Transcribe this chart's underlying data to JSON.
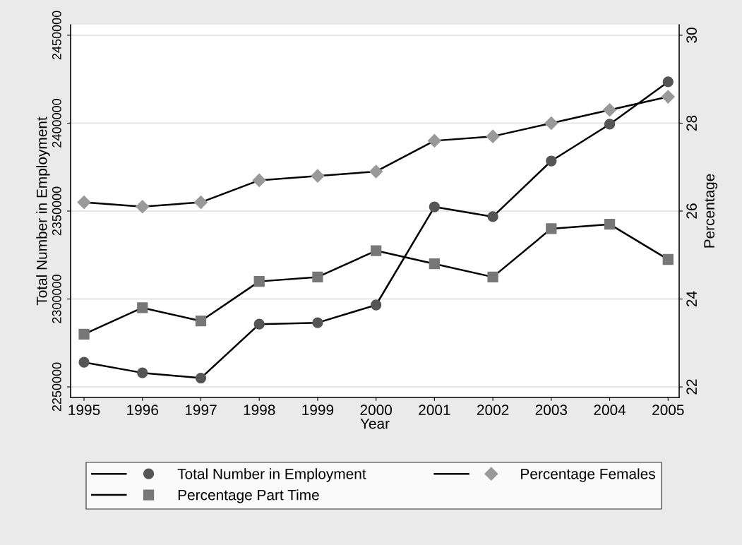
{
  "chart_data": {
    "type": "line",
    "xlabel": "Year",
    "ylabel": "Total Number in Employment",
    "y2label": "Percentage",
    "x": [
      1995,
      1996,
      1997,
      1998,
      1999,
      2000,
      2001,
      2002,
      2003,
      2004,
      2005
    ],
    "xlim": [
      1994.77,
      2005.19
    ],
    "xticks": [
      1995,
      1996,
      1997,
      1998,
      1999,
      2000,
      2001,
      2002,
      2003,
      2004,
      2005
    ],
    "ylim": [
      2244000,
      2456000
    ],
    "yticks": [
      2250000,
      2300000,
      2350000,
      2400000,
      2450000
    ],
    "y2lim": [
      21.76,
      30.24
    ],
    "y2ticks": [
      22,
      24,
      26,
      28,
      30
    ],
    "grid": "y",
    "legend": "bottom",
    "line_style": "solid",
    "series": [
      {
        "name": "Total Number in Employment",
        "color": "#555555",
        "marker": "circle",
        "values": [
          2264000,
          2258000,
          2255000,
          2285700,
          2286500,
          2296600,
          2352400,
          2346800,
          2378500,
          2399400,
          2423500
        ]
      },
      {
        "name": "Percentage Females",
        "color": "#999999",
        "marker": "diamond",
        "axis": "y2",
        "values": [
          26.2,
          26.1,
          26.2,
          26.7,
          26.8,
          26.9,
          27.6,
          27.7,
          28.0,
          28.3,
          28.6
        ]
      },
      {
        "name": "Percentage Part Time",
        "color": "#777777",
        "marker": "square",
        "axis": "y2",
        "values": [
          23.2,
          23.8,
          23.5,
          24.4,
          24.5,
          25.1,
          24.8,
          24.5,
          25.6,
          25.7,
          24.9
        ]
      }
    ]
  }
}
